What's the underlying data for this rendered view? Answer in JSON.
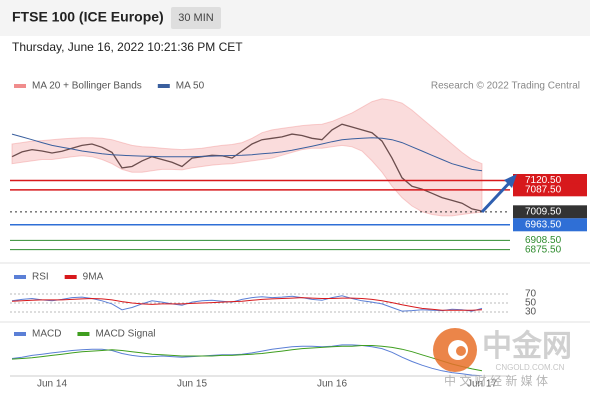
{
  "header": {
    "title": "FTSE 100 (ICE Europe)",
    "interval": "30 MIN",
    "timestamp": "Thursday, June 16, 2022 10:21:36 PM CET",
    "credit": "Research © 2022 Trading Central"
  },
  "watermark": {
    "brand": "中金网",
    "site": "CNGOLD.COM.CN",
    "tagline": "中 文 财 经 新 媒 体"
  },
  "chart_data": [
    {
      "type": "line",
      "ylim": [
        6860,
        7420
      ],
      "series": [
        {
          "color": "#333333",
          "values": [
            7205,
            7222,
            7230,
            7225,
            7218,
            7224,
            7235,
            7245,
            7250,
            7238,
            7220,
            7165,
            7170,
            7190,
            7205,
            7195,
            7185,
            7170,
            7200,
            7205,
            7210,
            7208,
            7200,
            7225,
            7250,
            7265,
            7270,
            7275,
            7285,
            7280,
            7270,
            7265,
            7300,
            7320,
            7310,
            7300,
            7290,
            7260,
            7200,
            7130,
            7100,
            7090,
            7075,
            7060,
            7050,
            7040,
            7020,
            7012
          ]
        },
        {
          "name": "MA 20 + Bollinger Bands",
          "color": "#f08c8c",
          "upper": [
            7250,
            7255,
            7260,
            7262,
            7265,
            7268,
            7270,
            7272,
            7272,
            7270,
            7265,
            7255,
            7245,
            7240,
            7238,
            7235,
            7232,
            7230,
            7232,
            7235,
            7240,
            7245,
            7248,
            7255,
            7270,
            7290,
            7300,
            7305,
            7310,
            7315,
            7318,
            7320,
            7330,
            7345,
            7360,
            7380,
            7400,
            7410,
            7405,
            7395,
            7370,
            7340,
            7310,
            7280,
            7250,
            7220,
            7195,
            7180
          ],
          "lower": [
            7180,
            7185,
            7190,
            7195,
            7195,
            7200,
            7205,
            7208,
            7205,
            7195,
            7180,
            7160,
            7150,
            7150,
            7155,
            7160,
            7160,
            7158,
            7165,
            7170,
            7175,
            7178,
            7180,
            7185,
            7190,
            7195,
            7200,
            7210,
            7220,
            7230,
            7235,
            7235,
            7240,
            7245,
            7240,
            7225,
            7190,
            7150,
            7100,
            7060,
            7030,
            7010,
            7000,
            6995,
            6995,
            7000,
            7005,
            7008
          ]
        },
        {
          "name": "MA 50",
          "color": "#3a5f9e",
          "values": [
            7285,
            7275,
            7265,
            7255,
            7245,
            7238,
            7232,
            7225,
            7220,
            7215,
            7212,
            7210,
            7208,
            7207,
            7206,
            7205,
            7205,
            7205,
            7205,
            7206,
            7207,
            7208,
            7209,
            7210,
            7212,
            7215,
            7218,
            7222,
            7228,
            7235,
            7242,
            7250,
            7258,
            7265,
            7268,
            7270,
            7272,
            7270,
            7265,
            7255,
            7240,
            7225,
            7210,
            7195,
            7180,
            7170,
            7160,
            7155
          ]
        }
      ],
      "levels": [
        {
          "value": 7120.5,
          "label": "7120.50",
          "color": "#d7191c",
          "boxed": true
        },
        {
          "value": 7087.5,
          "label": "7087.50",
          "color": "#d7191c",
          "boxed": true
        },
        {
          "value": 7009.5,
          "label": "7009.50",
          "color": "#333333",
          "boxed": true,
          "dotted": true
        },
        {
          "value": 6963.5,
          "label": "6963.50",
          "color": "#2f6fd6",
          "boxed": true
        },
        {
          "value": 6908.5,
          "label": "6908.50",
          "color": "#2e8b2e",
          "boxed": false
        },
        {
          "value": 6875.5,
          "label": "6875.50",
          "color": "#2e8b2e",
          "boxed": false
        }
      ]
    },
    {
      "type": "line",
      "ylim": [
        0,
        100
      ],
      "yticks": [
        70,
        50,
        30
      ],
      "series": [
        {
          "name": "RSI",
          "color": "#5b7fd6",
          "values": [
            55,
            58,
            60,
            57,
            55,
            58,
            62,
            63,
            60,
            55,
            48,
            35,
            40,
            48,
            55,
            52,
            48,
            45,
            52,
            55,
            56,
            54,
            52,
            58,
            62,
            64,
            62,
            63,
            65,
            62,
            58,
            56,
            62,
            66,
            60,
            55,
            52,
            48,
            40,
            32,
            33,
            35,
            34,
            33,
            36,
            35,
            32,
            38
          ]
        },
        {
          "name": "9MA",
          "color": "#d7191c",
          "values": [
            54,
            55,
            56,
            57,
            57,
            57,
            58,
            59,
            60,
            59,
            57,
            53,
            50,
            48,
            47,
            48,
            48,
            48,
            49,
            50,
            51,
            52,
            53,
            54,
            56,
            58,
            59,
            60,
            61,
            62,
            61,
            60,
            60,
            61,
            61,
            60,
            58,
            55,
            51,
            46,
            42,
            38,
            36,
            34,
            34,
            34,
            34,
            35
          ]
        }
      ]
    },
    {
      "type": "line",
      "ylim": [
        -40,
        25
      ],
      "categories": [
        null,
        null,
        null,
        null,
        "Jun 14",
        null,
        null,
        null,
        null,
        null,
        null,
        null,
        null,
        null,
        null,
        null,
        null,
        null,
        "Jun 15",
        null,
        null,
        null,
        null,
        null,
        null,
        null,
        null,
        null,
        null,
        null,
        null,
        null,
        "Jun 16",
        null,
        null,
        null,
        null,
        null,
        null,
        null,
        null,
        null,
        null,
        null,
        null,
        null,
        null,
        "Jun 17"
      ],
      "series": [
        {
          "name": "MACD",
          "color": "#5b7fd6",
          "values": [
            -5,
            -3,
            0,
            2,
            4,
            6,
            8,
            9,
            10,
            10,
            8,
            3,
            0,
            -2,
            -2,
            -1,
            -2,
            -3,
            -2,
            -1,
            0,
            1,
            1,
            2,
            4,
            7,
            10,
            12,
            14,
            15,
            15,
            14,
            15,
            17,
            17,
            16,
            14,
            11,
            5,
            -3,
            -10,
            -16,
            -21,
            -25,
            -28,
            -30,
            -32,
            -33
          ]
        },
        {
          "name": "MACD Signal",
          "color": "#3f9e1f",
          "values": [
            -6,
            -5,
            -4,
            -2,
            0,
            2,
            4,
            6,
            7,
            8,
            9,
            8,
            6,
            4,
            2,
            1,
            0,
            -1,
            -1,
            -1,
            -1,
            0,
            0,
            1,
            2,
            3,
            5,
            7,
            9,
            11,
            12,
            13,
            14,
            15,
            15,
            16,
            16,
            15,
            13,
            10,
            6,
            1,
            -4,
            -9,
            -14,
            -18,
            -22,
            -25
          ]
        }
      ]
    }
  ]
}
